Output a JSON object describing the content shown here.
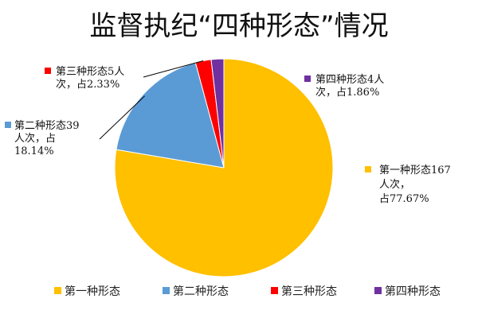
{
  "chart_data": {
    "type": "pie",
    "title": "监督执纪“四种形态”情况",
    "categories": [
      "第一种形态",
      "第二种形态",
      "第三种形态",
      "第四种形态"
    ],
    "values": [
      167,
      39,
      5,
      4
    ],
    "percentages": [
      "77.67%",
      "18.14%",
      "2.33%",
      "1.86%"
    ],
    "colors": [
      "#FFC000",
      "#5B9BD5",
      "#FF0000",
      "#7030A0"
    ],
    "data_labels": [
      [
        "第一种形态167",
        "人次，",
        "占77.67%"
      ],
      [
        "第二种形态39",
        "人次，占",
        "18.14%"
      ],
      [
        "第三种形态5人",
        "次，占2.33%"
      ],
      [
        "第四种形态4人",
        "次，占1.86%"
      ]
    ],
    "legend_position": "bottom",
    "start_angle": "12 o'clock",
    "direction": "clockwise"
  }
}
